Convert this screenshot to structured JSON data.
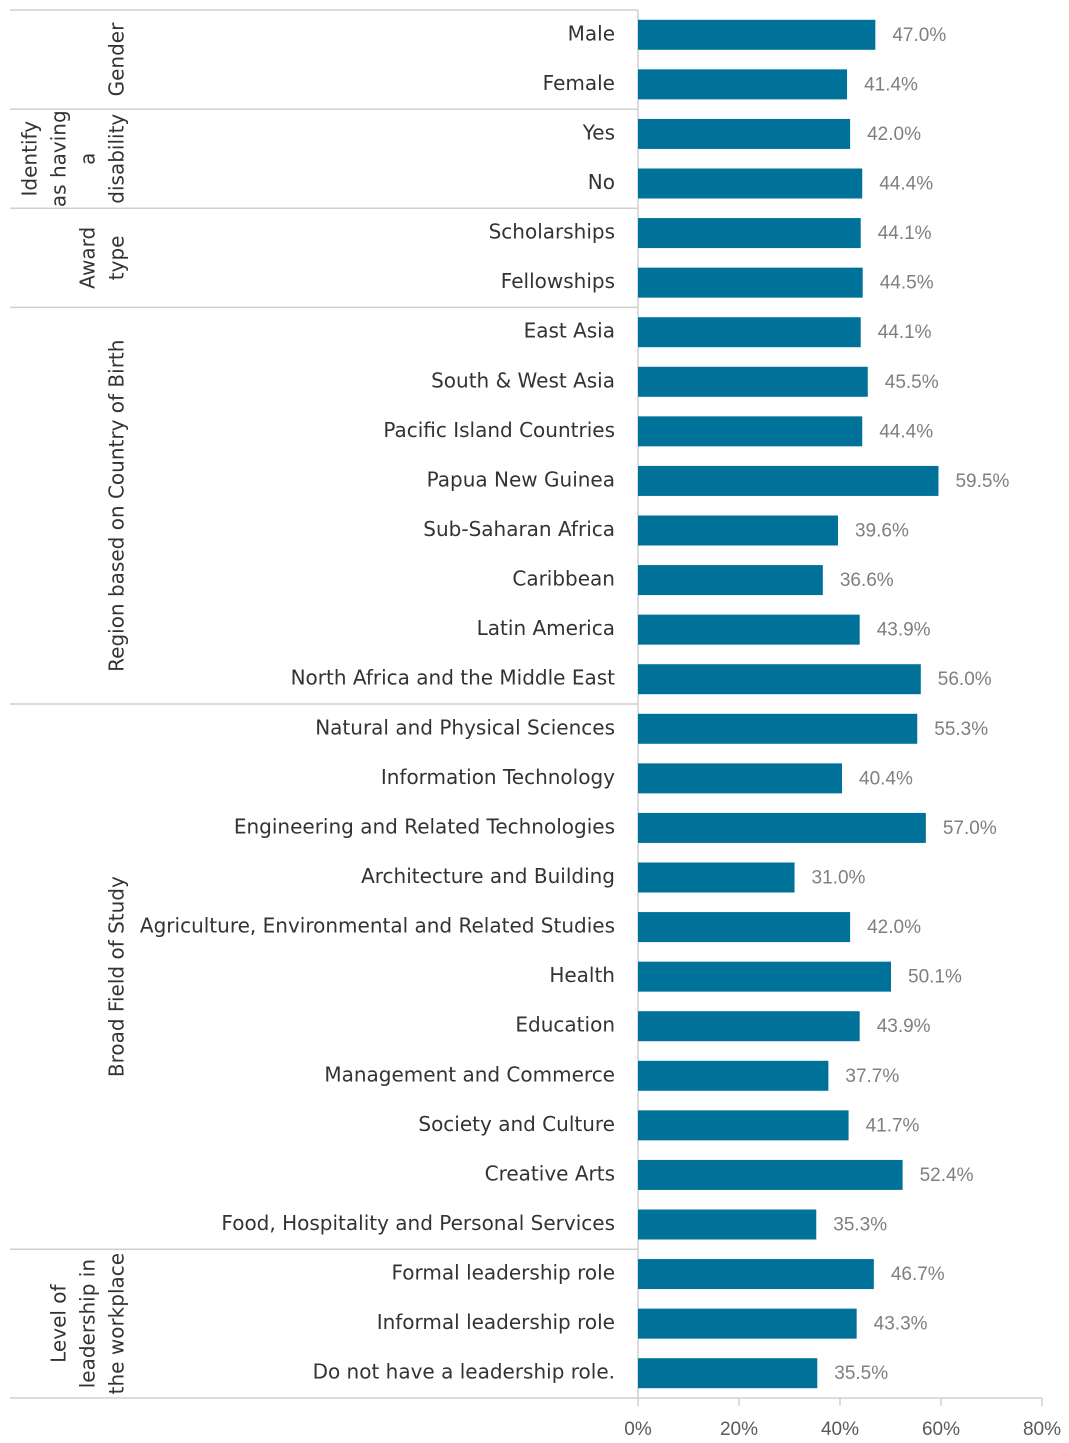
{
  "chart_data": {
    "type": "bar",
    "orientation": "horizontal",
    "color": "#00729a",
    "categories": [
      "Male",
      "Female",
      "Yes",
      "No",
      "Scholarships",
      "Fellowships",
      "East Asia",
      "South & West Asia",
      "Pacific Island Countries",
      "Papua New Guinea",
      "Sub-Saharan Africa",
      "Caribbean",
      "Latin America",
      "North Africa and the Middle East",
      "Natural and Physical Sciences",
      "Information Technology",
      "Engineering and Related Technologies",
      "Architecture and Building",
      "Agriculture, Environmental and Related Studies",
      "Health",
      "Education",
      "Management and Commerce",
      "Society and Culture",
      "Creative Arts",
      "Food, Hospitality and Personal Services",
      "Formal leadership role",
      "Informal leadership role",
      "Do not have a leadership role."
    ],
    "values": [
      47.0,
      41.4,
      42.0,
      44.4,
      44.1,
      44.5,
      44.1,
      45.5,
      44.4,
      59.5,
      39.6,
      36.6,
      43.9,
      56.0,
      55.3,
      40.4,
      57.0,
      31.0,
      42.0,
      50.1,
      43.9,
      37.7,
      41.7,
      52.4,
      35.3,
      46.7,
      43.3,
      35.5
    ],
    "value_labels": [
      "47.0%",
      "41.4%",
      "42.0%",
      "44.4%",
      "44.1%",
      "44.5%",
      "44.1%",
      "45.5%",
      "44.4%",
      "59.5%",
      "39.6%",
      "36.6%",
      "43.9%",
      "56.0%",
      "55.3%",
      "40.4%",
      "57.0%",
      "31.0%",
      "42.0%",
      "50.1%",
      "43.9%",
      "37.7%",
      "41.7%",
      "52.4%",
      "35.3%",
      "46.7%",
      "43.3%",
      "35.5%"
    ],
    "groups": [
      {
        "lines": [
          "Gender"
        ],
        "size": 2
      },
      {
        "lines": [
          "Identify",
          "as having",
          "a",
          "disability"
        ],
        "size": 2
      },
      {
        "lines": [
          "Award",
          "type"
        ],
        "size": 2
      },
      {
        "lines": [
          "Region based on Country of Birth"
        ],
        "size": 8
      },
      {
        "lines": [
          "Broad Field of Study"
        ],
        "size": 11
      },
      {
        "lines": [
          "Level of",
          "leadership in",
          "the workplace"
        ],
        "size": 3
      }
    ],
    "xlim": [
      0,
      80
    ],
    "xticks": [
      {
        "value": 0,
        "label": "0%"
      },
      {
        "value": 20,
        "label": "20%"
      },
      {
        "value": 40,
        "label": "40%"
      },
      {
        "value": 60,
        "label": "60%"
      },
      {
        "value": 80,
        "label": "80%"
      }
    ]
  }
}
